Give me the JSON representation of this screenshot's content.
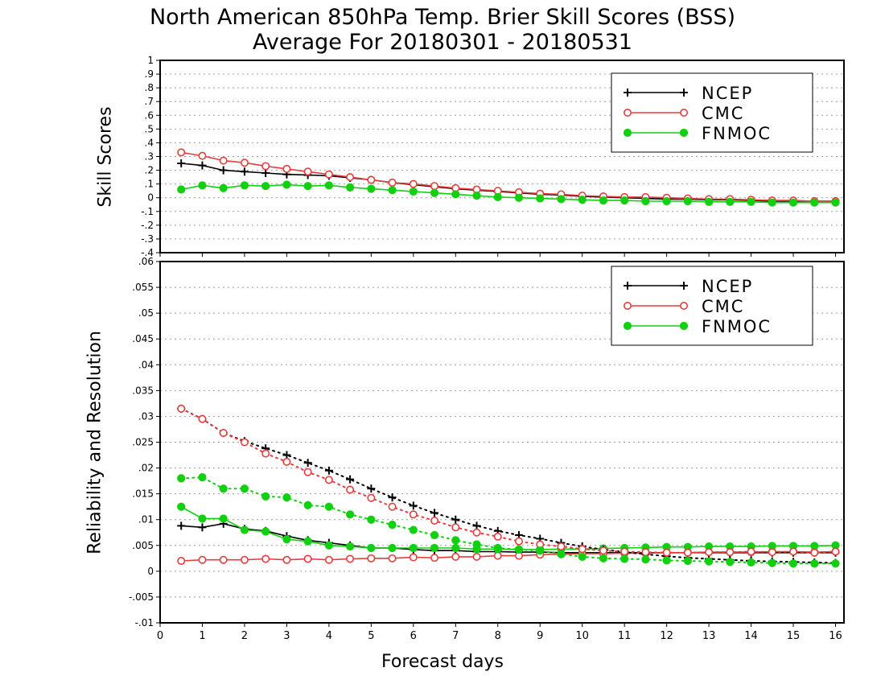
{
  "title_line1": "North American 850hPa Temp. Brier Skill Scores (BSS)",
  "title_line2": "Average For 20180301 - 20180531",
  "xlabel": "Forecast days",
  "colors": {
    "NCEP": "#000000",
    "CMC": "#e83c3c",
    "FNMOC": "#10d010"
  },
  "chart_data": [
    {
      "type": "line",
      "panel": "top",
      "ylabel": "Skill Scores",
      "xlim": [
        0,
        16.2
      ],
      "ylim": [
        -0.4,
        1
      ],
      "xticks": [
        0,
        1,
        2,
        3,
        4,
        5,
        6,
        7,
        8,
        9,
        10,
        11,
        12,
        13,
        14,
        15,
        16
      ],
      "yticks": [
        -0.4,
        -0.3,
        -0.2,
        -0.1,
        0,
        0.1,
        0.2,
        0.3,
        0.4,
        0.5,
        0.6,
        0.7,
        0.8,
        0.9,
        1
      ],
      "grid": true,
      "legend_position": "top-right",
      "x": [
        0.5,
        1,
        1.5,
        2,
        2.5,
        3,
        3.5,
        4,
        4.5,
        5,
        5.5,
        6,
        6.5,
        7,
        7.5,
        8,
        8.5,
        9,
        9.5,
        10,
        10.5,
        11,
        11.5,
        12,
        12.5,
        13,
        13.5,
        14,
        14.5,
        15,
        15.5,
        16
      ],
      "series": [
        {
          "name": "NCEP",
          "style": "solid",
          "marker": "plus",
          "values": [
            0.25,
            0.235,
            0.2,
            0.19,
            0.18,
            0.17,
            0.165,
            0.16,
            0.145,
            0.13,
            0.11,
            0.095,
            0.08,
            0.065,
            0.055,
            0.045,
            0.035,
            0.025,
            0.02,
            0.01,
            0.005,
            0,
            -0.005,
            -0.01,
            -0.01,
            -0.015,
            -0.015,
            -0.02,
            -0.025,
            -0.025,
            -0.025,
            -0.025
          ]
        },
        {
          "name": "CMC",
          "style": "solid",
          "marker": "open-circle",
          "values": [
            0.33,
            0.305,
            0.27,
            0.255,
            0.23,
            0.21,
            0.19,
            0.17,
            0.15,
            0.13,
            0.11,
            0.1,
            0.085,
            0.07,
            0.06,
            0.05,
            0.04,
            0.03,
            0.025,
            0.015,
            0.01,
            0.005,
            0.005,
            0,
            -0.005,
            -0.01,
            -0.01,
            -0.015,
            -0.02,
            -0.02,
            -0.025,
            -0.025
          ]
        },
        {
          "name": "FNMOC",
          "style": "solid",
          "marker": "filled-circle",
          "values": [
            0.06,
            0.09,
            0.07,
            0.09,
            0.085,
            0.095,
            0.085,
            0.09,
            0.075,
            0.065,
            0.055,
            0.045,
            0.035,
            0.025,
            0.015,
            0.005,
            0,
            -0.005,
            -0.01,
            -0.015,
            -0.02,
            -0.02,
            -0.025,
            -0.025,
            -0.025,
            -0.03,
            -0.03,
            -0.03,
            -0.035,
            -0.035,
            -0.035,
            -0.035
          ]
        }
      ]
    },
    {
      "type": "line",
      "panel": "bottom",
      "ylabel": "Reliability and Resolution",
      "xlim": [
        0,
        16.2
      ],
      "ylim": [
        -0.01,
        0.06
      ],
      "xticks": [
        0,
        1,
        2,
        3,
        4,
        5,
        6,
        7,
        8,
        9,
        10,
        11,
        12,
        13,
        14,
        15,
        16
      ],
      "yticks": [
        -0.01,
        -0.005,
        0,
        0.005,
        0.01,
        0.015,
        0.02,
        0.025,
        0.03,
        0.035,
        0.04,
        0.045,
        0.05,
        0.055,
        0.06
      ],
      "grid": true,
      "legend_position": "top-right",
      "x": [
        0.5,
        1,
        1.5,
        2,
        2.5,
        3,
        3.5,
        4,
        4.5,
        5,
        5.5,
        6,
        6.5,
        7,
        7.5,
        8,
        8.5,
        9,
        9.5,
        10,
        10.5,
        11,
        11.5,
        12,
        12.5,
        13,
        13.5,
        14,
        14.5,
        15,
        15.5,
        16
      ],
      "series": [
        {
          "name": "NCEP",
          "style": "solid",
          "marker": "plus",
          "values": [
            0.0088,
            0.0085,
            0.0092,
            0.0082,
            0.0078,
            0.0068,
            0.006,
            0.0055,
            0.005,
            0.0045,
            0.0045,
            0.0042,
            0.004,
            0.004,
            0.0038,
            0.0038,
            0.0037,
            0.0037,
            0.0036,
            0.0036,
            0.0036,
            0.0036,
            0.0036,
            0.0036,
            0.0036,
            0.0036,
            0.0036,
            0.0036,
            0.0036,
            0.0036,
            0.0036,
            0.0036
          ]
        },
        {
          "name": "CMC",
          "style": "solid",
          "marker": "open-circle",
          "values": [
            0.002,
            0.0022,
            0.0022,
            0.0022,
            0.0024,
            0.0022,
            0.0024,
            0.0022,
            0.0024,
            0.0025,
            0.0025,
            0.0027,
            0.0026,
            0.0028,
            0.0028,
            0.003,
            0.003,
            0.0032,
            0.0033,
            0.0034,
            0.0034,
            0.0035,
            0.0035,
            0.0036,
            0.0036,
            0.0037,
            0.0037,
            0.0037,
            0.0038,
            0.0038,
            0.0037,
            0.0038
          ]
        },
        {
          "name": "FNMOC",
          "style": "solid",
          "marker": "filled-circle",
          "values": [
            0.0125,
            0.0102,
            0.0102,
            0.008,
            0.0077,
            0.0062,
            0.0058,
            0.005,
            0.0048,
            0.0045,
            0.0045,
            0.0045,
            0.0045,
            0.0045,
            0.0043,
            0.0043,
            0.0042,
            0.0042,
            0.0043,
            0.0043,
            0.0044,
            0.0045,
            0.0046,
            0.0047,
            0.0047,
            0.0048,
            0.0048,
            0.0048,
            0.0049,
            0.0049,
            0.0049,
            0.005
          ]
        },
        {
          "name": "NCEP",
          "style": "dotted",
          "marker": "plus",
          "legend": false,
          "values": [
            0.0315,
            0.0295,
            0.0268,
            0.0252,
            0.0238,
            0.0225,
            0.021,
            0.0195,
            0.0178,
            0.016,
            0.0143,
            0.0127,
            0.0113,
            0.01,
            0.0088,
            0.0078,
            0.007,
            0.0063,
            0.0055,
            0.0048,
            0.0042,
            0.0037,
            0.0033,
            0.0029,
            0.0026,
            0.0024,
            0.0022,
            0.002,
            0.0019,
            0.0018,
            0.0017,
            0.0016
          ]
        },
        {
          "name": "CMC",
          "style": "dotted",
          "marker": "open-circle",
          "legend": false,
          "values": [
            0.0315,
            0.0295,
            0.0268,
            0.025,
            0.0228,
            0.0212,
            0.0192,
            0.0177,
            0.0158,
            0.0142,
            0.0125,
            0.011,
            0.0098,
            0.0085,
            0.0075,
            0.0067,
            0.0058,
            0.0052,
            0.0048,
            0.0043,
            0.004,
            0.0038,
            0.0037,
            0.0036,
            0.0036,
            0.0037,
            0.0037,
            0.0038,
            0.0037,
            0.0038,
            0.0036,
            0.0038
          ]
        },
        {
          "name": "FNMOC",
          "style": "dotted",
          "marker": "filled-circle",
          "legend": false,
          "values": [
            0.018,
            0.0182,
            0.016,
            0.016,
            0.0145,
            0.0143,
            0.0128,
            0.0125,
            0.011,
            0.01,
            0.009,
            0.008,
            0.007,
            0.006,
            0.0052,
            0.0045,
            0.0042,
            0.004,
            0.0033,
            0.0028,
            0.0025,
            0.0024,
            0.0023,
            0.0021,
            0.002,
            0.0019,
            0.0018,
            0.0017,
            0.0016,
            0.0015,
            0.0015,
            0.0015
          ]
        }
      ]
    }
  ]
}
